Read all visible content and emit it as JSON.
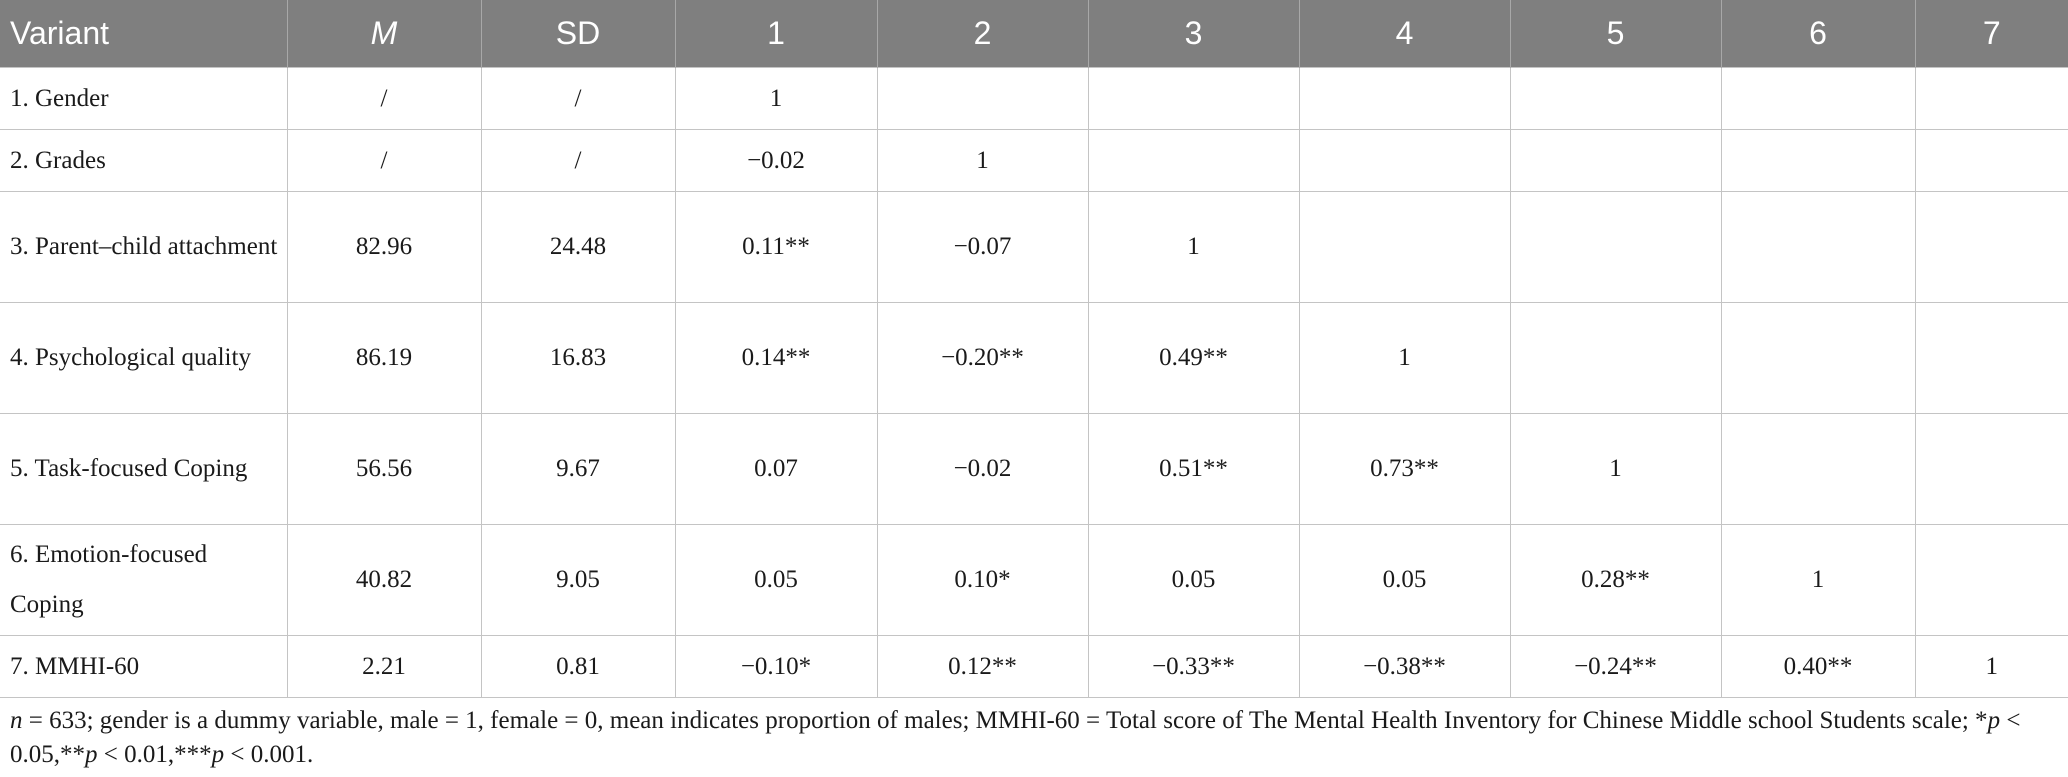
{
  "table": {
    "headers": [
      "Variant",
      "M",
      "SD",
      "1",
      "2",
      "3",
      "4",
      "5",
      "6",
      "7"
    ],
    "rows": [
      {
        "label": "1. Gender",
        "cells": [
          "/",
          "/",
          "1",
          "",
          "",
          "",
          "",
          "",
          ""
        ]
      },
      {
        "label": "2. Grades",
        "cells": [
          "/",
          "/",
          "−0.02",
          "1",
          "",
          "",
          "",
          "",
          ""
        ]
      },
      {
        "label": "3. Parent–child attachment",
        "cells": [
          "82.96",
          "24.48",
          "0.11**",
          "−0.07",
          "1",
          "",
          "",
          "",
          ""
        ]
      },
      {
        "label": "4. Psychological quality",
        "cells": [
          "86.19",
          "16.83",
          "0.14**",
          "−0.20**",
          "0.49**",
          "1",
          "",
          "",
          ""
        ]
      },
      {
        "label": "5. Task-focused Coping",
        "cells": [
          "56.56",
          "9.67",
          "0.07",
          "−0.02",
          "0.51**",
          "0.73**",
          "1",
          "",
          ""
        ]
      },
      {
        "label": "6. Emotion-focused Coping",
        "cells": [
          "40.82",
          "9.05",
          "0.05",
          "0.10*",
          "0.05",
          "0.05",
          "0.28**",
          "1",
          ""
        ]
      },
      {
        "label": "7. MMHI-60",
        "cells": [
          "2.21",
          "0.81",
          "−0.10*",
          "0.12**",
          "−0.33**",
          "−0.38**",
          "−0.24**",
          "0.40**",
          "1"
        ]
      }
    ]
  },
  "note": {
    "n_symbol": "n",
    "line1": " = 633; gender is a dummy variable, male = 1, female = 0, mean indicates proportion of males; MMHI-60 = Total score of The Mental Health Inventory for Chinese Middle school Students scale; *",
    "p1": "p",
    "t1": " < 0.05,**",
    "p2": "p",
    "t2": " < 0.01,***",
    "p3": "p",
    "t3": " < 0.001."
  }
}
